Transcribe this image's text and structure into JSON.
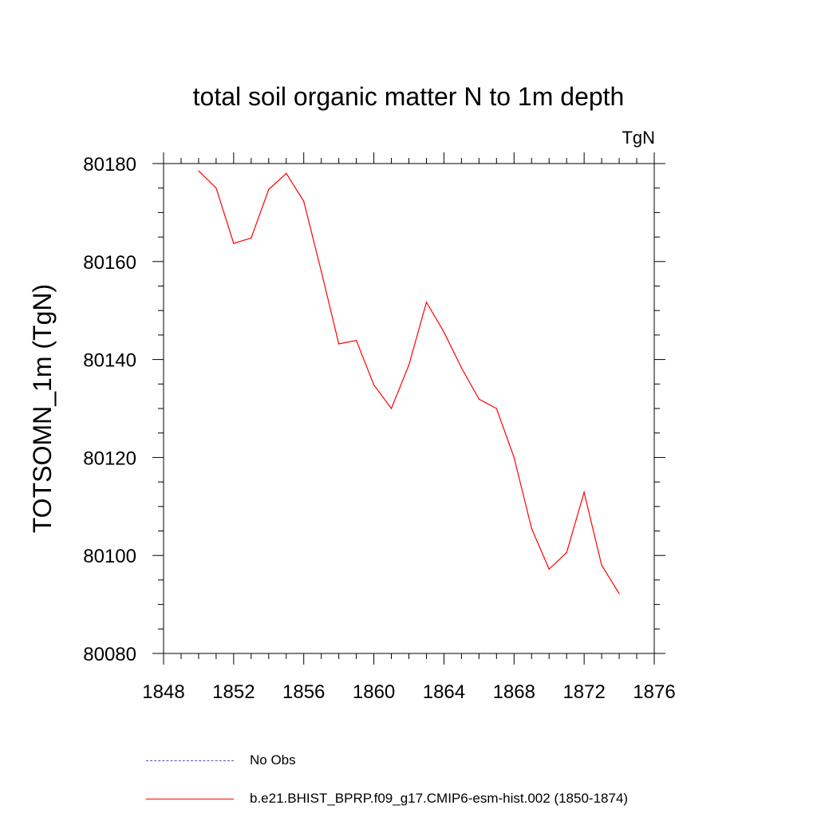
{
  "chart_data": {
    "type": "line",
    "title": "total soil organic matter N to 1m depth",
    "units_label": "TgN",
    "ylabel": "TOTSOMN_1m  (TgN)",
    "xlabel": "",
    "xlim": [
      1848,
      1876
    ],
    "ylim": [
      80080,
      80180
    ],
    "xticks": [
      1848,
      1852,
      1856,
      1860,
      1864,
      1868,
      1872,
      1876
    ],
    "yticks": [
      80080,
      80100,
      80120,
      80140,
      80160,
      80180
    ],
    "series": [
      {
        "name": "b.e21.BHIST_BPRP.f09_g17.CMIP6-esm-hist.002 (1850-1874)",
        "color": "#ff0000",
        "x": [
          1850,
          1851,
          1852,
          1853,
          1854,
          1855,
          1856,
          1857,
          1858,
          1859,
          1860,
          1861,
          1862,
          1863,
          1864,
          1865,
          1866,
          1867,
          1868,
          1869,
          1870,
          1871,
          1872,
          1873,
          1874
        ],
        "values": [
          80178.5,
          80175.0,
          80163.7,
          80164.8,
          80174.7,
          80178.0,
          80172.3,
          80158.0,
          80143.2,
          80143.9,
          80134.8,
          80130.0,
          80138.9,
          80151.7,
          80145.6,
          80138.3,
          80131.9,
          80130.0,
          80120.0,
          80105.5,
          80097.2,
          80100.6,
          80112.9,
          80098.0,
          80092.2
        ]
      }
    ],
    "legend": [
      {
        "label": "No Obs",
        "style": "dashed",
        "color": "#5b4fb0"
      },
      {
        "label": "b.e21.BHIST_BPRP.f09_g17.CMIP6-esm-hist.002 (1850-1874)",
        "style": "solid",
        "color": "#ff0000"
      }
    ]
  }
}
